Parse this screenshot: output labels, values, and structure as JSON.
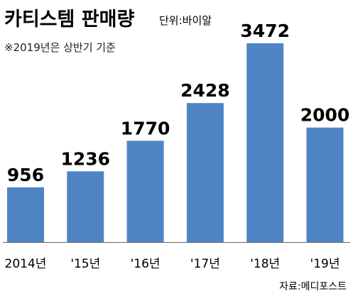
{
  "header": {
    "title": "카티스템 판매량",
    "unit": "단위:바이알",
    "note": "※2019년은 상반기 기준"
  },
  "source": "자료:메디포스트",
  "colors": {
    "bar": "#4f84c4",
    "axis": "#666666"
  },
  "chart_data": {
    "type": "bar",
    "title": "카티스템 판매량",
    "ylabel": "단위:바이알",
    "categories": [
      "2014년",
      "'15년",
      "'16년",
      "'17년",
      "'18년",
      "'19년"
    ],
    "values": [
      956,
      1236,
      1770,
      2428,
      3472,
      2000
    ],
    "data_labels": [
      "956",
      "1236",
      "1770",
      "2428",
      "3472",
      "2000"
    ],
    "ylim": [
      0,
      3472
    ],
    "grid": false,
    "annotations": [
      "※2019년은 상반기 기준"
    ]
  }
}
